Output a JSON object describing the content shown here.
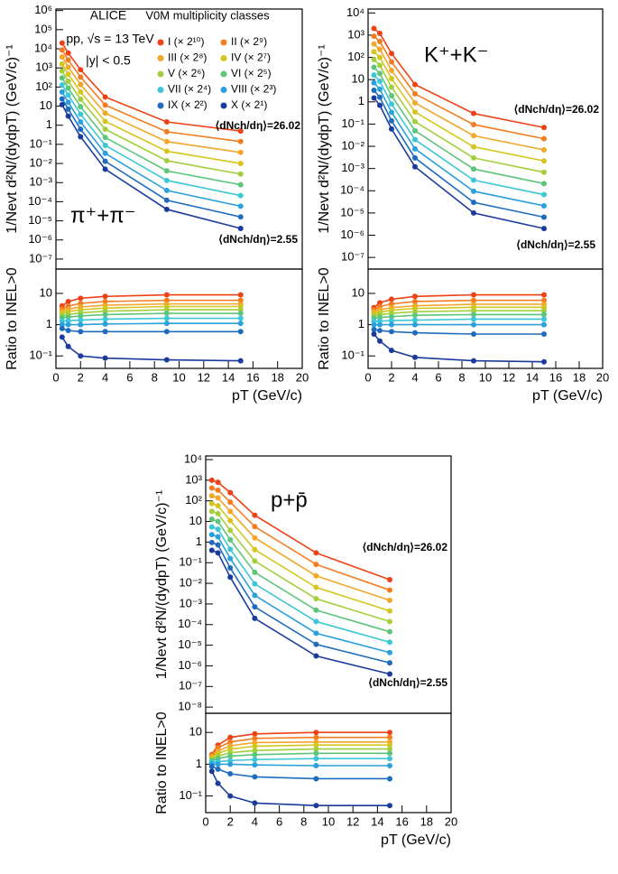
{
  "chart_data": [
    {
      "type": "line",
      "ylog": true,
      "x": [
        0.5,
        1,
        2,
        4,
        9,
        15
      ],
      "xlim": [
        0,
        20
      ],
      "ylim": [
        3e-08,
        1200000.0
      ],
      "yticks": [
        {
          "value": 1e-07,
          "label": "10⁻⁷"
        },
        {
          "value": 1e-06,
          "label": "10⁻⁶"
        },
        {
          "value": 1e-05,
          "label": "10⁻⁵"
        },
        {
          "value": 0.0001,
          "label": "10⁻⁴"
        },
        {
          "value": 0.001,
          "label": "10⁻³"
        },
        {
          "value": 0.01,
          "label": "10⁻²"
        },
        {
          "value": 0.1,
          "label": "10⁻¹"
        },
        1,
        10,
        {
          "value": 100,
          "label": "10²"
        },
        {
          "value": 1000,
          "label": "10³"
        },
        {
          "value": 10000,
          "label": "10⁴"
        },
        {
          "value": 100000,
          "label": "10⁵"
        },
        {
          "value": 1000000,
          "label": "10⁶"
        }
      ],
      "ylabel": "1/Nevt d²N/(dydpT) (GeV/c)⁻¹",
      "experiment": "ALICE",
      "system": "pp, √s = 13 TeV",
      "rapidity": "|y| < 0.5",
      "legend_title": "V0M multiplicity classes",
      "particle": "π⁺+π⁻",
      "label_high": "⟨dNch/dη⟩=26.02",
      "label_low": "⟨dNch/dη⟩=2.55",
      "series": [
        {
          "name": "I (× 2¹⁰)",
          "color": "#ee4216",
          "values": [
            20000,
            6000,
            800,
            30,
            1.5,
            0.5
          ]
        },
        {
          "name": "II (× 2⁹)",
          "color": "#f47c20",
          "values": [
            8600,
            2600,
            330,
            11.4,
            0.46,
            0.14
          ]
        },
        {
          "name": "III (× 2⁸)",
          "color": "#f2a62a",
          "values": [
            3700,
            1100,
            135,
            4.3,
            0.14,
            0.038
          ]
        },
        {
          "name": "IV (× 2⁷)",
          "color": "#d6c51f",
          "values": [
            1600,
            470,
            55,
            1.6,
            0.044,
            0.01
          ]
        },
        {
          "name": "V (× 2⁶)",
          "color": "#a3cf3c",
          "values": [
            690,
            200,
            23,
            0.62,
            0.014,
            0.0028
          ]
        },
        {
          "name": "VI (× 2⁵)",
          "color": "#5cc57a",
          "values": [
            300,
            88,
            9.3,
            0.23,
            0.0041,
            0.00077
          ]
        },
        {
          "name": "VII (× 2⁴)",
          "color": "#3cc6d6",
          "values": [
            130,
            38,
            3.8,
            0.089,
            0.0013,
            0.00021
          ]
        },
        {
          "name": "VIII (× 2³)",
          "color": "#2aa0dc",
          "values": [
            55,
            16,
            1.5,
            0.034,
            0.00039,
            5.8e-05
          ]
        },
        {
          "name": "IX (× 2²)",
          "color": "#1f6cbe",
          "values": [
            24,
            7,
            0.62,
            0.013,
            0.00012,
            1.6e-05
          ]
        },
        {
          "name": "X (× 2¹)",
          "color": "#1b3b9c",
          "values": [
            12,
            3,
            0.25,
            0.005,
            4e-05,
            4e-06
          ]
        }
      ]
    },
    {
      "type": "line",
      "ylog": true,
      "x": [
        0.5,
        1,
        2,
        4,
        9,
        15
      ],
      "xlim": [
        0,
        20
      ],
      "ylim": [
        0.04,
        60
      ],
      "xticks": [
        0,
        2,
        4,
        6,
        8,
        10,
        12,
        14,
        16,
        18,
        20
      ],
      "yticks": [
        {
          "value": 0.1,
          "label": "10⁻¹"
        },
        1,
        10
      ],
      "ylabel": "Ratio to INEL>0",
      "xlabel": "pT (GeV/c)",
      "series": [
        {
          "color": "#ee4216",
          "values": [
            4,
            5.5,
            7,
            8,
            9,
            9
          ]
        },
        {
          "color": "#f47c20",
          "values": [
            3.2,
            3.9,
            4.8,
            5.5,
            6,
            6
          ]
        },
        {
          "color": "#f2a62a",
          "values": [
            2.7,
            3.1,
            3.7,
            4.2,
            4.6,
            4.6
          ]
        },
        {
          "color": "#d6c51f",
          "values": [
            2.3,
            2.6,
            3,
            3.4,
            3.8,
            3.8
          ]
        },
        {
          "color": "#a3cf3c",
          "values": [
            2,
            2.1,
            2.4,
            2.7,
            3,
            3
          ]
        },
        {
          "color": "#5cc57a",
          "values": [
            1.7,
            1.75,
            1.9,
            2.1,
            2.3,
            2.3
          ]
        },
        {
          "color": "#3cc6d6",
          "values": [
            1.3,
            1.35,
            1.4,
            1.5,
            1.6,
            1.6
          ]
        },
        {
          "color": "#2aa0dc",
          "values": [
            1,
            1,
            1,
            1.05,
            1.1,
            1.1
          ]
        },
        {
          "color": "#1f6cbe",
          "values": [
            0.75,
            0.65,
            0.6,
            0.6,
            0.6,
            0.6
          ]
        },
        {
          "color": "#1b3b9c",
          "values": [
            0.4,
            0.2,
            0.1,
            0.085,
            0.075,
            0.07
          ]
        }
      ]
    },
    {
      "type": "line",
      "ylog": true,
      "x": [
        0.5,
        1,
        2,
        4,
        9,
        15
      ],
      "xlim": [
        0,
        20
      ],
      "ylim": [
        3e-08,
        15000.0
      ],
      "yticks": [
        {
          "value": 1e-07,
          "label": "10⁻⁷"
        },
        {
          "value": 1e-06,
          "label": "10⁻⁶"
        },
        {
          "value": 1e-05,
          "label": "10⁻⁵"
        },
        {
          "value": 0.0001,
          "label": "10⁻⁴"
        },
        {
          "value": 0.001,
          "label": "10⁻³"
        },
        {
          "value": 0.01,
          "label": "10⁻²"
        },
        {
          "value": 0.1,
          "label": "10⁻¹"
        },
        1,
        10,
        {
          "value": 100,
          "label": "10²"
        },
        {
          "value": 1000,
          "label": "10³"
        },
        {
          "value": 10000,
          "label": "10⁴"
        }
      ],
      "ylabel": "1/Nevt d²N/(dydpT) (GeV/c)⁻¹",
      "particle": "K⁺+K⁻",
      "label_high": "⟨dNch/dη⟩=26.02",
      "label_low": "⟨dNch/dη⟩=2.55",
      "series": [
        {
          "color": "#ee4216",
          "values": [
            2000,
            1200,
            150,
            6,
            0.3,
            0.07
          ]
        },
        {
          "color": "#f47c20",
          "values": [
            900,
            525,
            63,
            2.3,
            0.095,
            0.022
          ]
        },
        {
          "color": "#f2a62a",
          "values": [
            400,
            230,
            26,
            0.9,
            0.03,
            0.0069
          ]
        },
        {
          "color": "#d6c51f",
          "values": [
            180,
            100,
            11,
            0.35,
            0.0095,
            0.0022
          ]
        },
        {
          "color": "#a3cf3c",
          "values": [
            80,
            44,
            4.6,
            0.13,
            0.003,
            0.00068
          ]
        },
        {
          "color": "#5cc57a",
          "values": [
            36,
            19,
            1.9,
            0.05,
            0.00095,
            0.00021
          ]
        },
        {
          "color": "#3cc6d6",
          "values": [
            16,
            8.4,
            0.8,
            0.02,
            0.0003,
            6.7e-05
          ]
        },
        {
          "color": "#2aa0dc",
          "values": [
            7.2,
            3.7,
            0.34,
            0.0077,
            9.5e-05,
            2.1e-05
          ]
        },
        {
          "color": "#1f6cbe",
          "values": [
            3.3,
            1.6,
            0.14,
            0.003,
            3e-05,
            6.5e-06
          ]
        },
        {
          "color": "#1b3b9c",
          "values": [
            1.5,
            0.7,
            0.06,
            0.0012,
            1e-05,
            2e-06
          ]
        }
      ]
    },
    {
      "type": "line",
      "ylog": true,
      "x": [
        0.5,
        1,
        2,
        4,
        9,
        15
      ],
      "xlim": [
        0,
        20
      ],
      "ylim": [
        0.04,
        60
      ],
      "xticks": [
        0,
        2,
        4,
        6,
        8,
        10,
        12,
        14,
        16,
        18,
        20
      ],
      "yticks": [
        {
          "value": 0.1,
          "label": "10⁻¹"
        },
        1,
        10
      ],
      "ylabel": "Ratio to INEL>0",
      "xlabel": "pT (GeV/c)",
      "series": [
        {
          "color": "#ee4216",
          "values": [
            3.5,
            5,
            6.5,
            8,
            9,
            9
          ]
        },
        {
          "color": "#f47c20",
          "values": [
            3,
            3.8,
            4.6,
            5.5,
            6,
            6
          ]
        },
        {
          "color": "#f2a62a",
          "values": [
            2.5,
            3,
            3.5,
            4,
            4.5,
            4.5
          ]
        },
        {
          "color": "#d6c51f",
          "values": [
            2.2,
            2.5,
            2.9,
            3.3,
            3.6,
            3.6
          ]
        },
        {
          "color": "#a3cf3c",
          "values": [
            1.9,
            2.1,
            2.3,
            2.6,
            2.8,
            2.8
          ]
        },
        {
          "color": "#5cc57a",
          "values": [
            1.6,
            1.7,
            1.8,
            2,
            2.1,
            2.1
          ]
        },
        {
          "color": "#3cc6d6",
          "values": [
            1.3,
            1.3,
            1.35,
            1.4,
            1.5,
            1.5
          ]
        },
        {
          "color": "#2aa0dc",
          "values": [
            1,
            1,
            1,
            1,
            1,
            1
          ]
        },
        {
          "color": "#1f6cbe",
          "values": [
            0.7,
            0.65,
            0.6,
            0.55,
            0.5,
            0.5
          ]
        },
        {
          "color": "#1b3b9c",
          "values": [
            0.5,
            0.3,
            0.15,
            0.09,
            0.07,
            0.065
          ]
        }
      ]
    },
    {
      "type": "line",
      "ylog": true,
      "x": [
        0.5,
        1,
        2,
        4,
        9,
        15
      ],
      "xlim": [
        0,
        20
      ],
      "ylim": [
        5e-09,
        15000.0
      ],
      "yticks": [
        {
          "value": 1e-08,
          "label": "10⁻⁸"
        },
        {
          "value": 1e-07,
          "label": "10⁻⁷"
        },
        {
          "value": 1e-06,
          "label": "10⁻⁶"
        },
        {
          "value": 1e-05,
          "label": "10⁻⁵"
        },
        {
          "value": 0.0001,
          "label": "10⁻⁴"
        },
        {
          "value": 0.001,
          "label": "10⁻³"
        },
        {
          "value": 0.01,
          "label": "10⁻²"
        },
        {
          "value": 0.1,
          "label": "10⁻¹"
        },
        1,
        10,
        {
          "value": 100,
          "label": "10²"
        },
        {
          "value": 1000,
          "label": "10³"
        },
        {
          "value": 10000,
          "label": "10⁴"
        }
      ],
      "ylabel": "1/Nevt d²N/(dydpT) (GeV/c)⁻¹",
      "particle": "p+p̄",
      "label_high": "⟨dNch/dη⟩=26.02",
      "label_low": "⟨dNch/dη⟩=2.55",
      "series": [
        {
          "color": "#ee4216",
          "values": [
            1000,
            800,
            250,
            20,
            0.3,
            0.015
          ]
        },
        {
          "color": "#f47c20",
          "values": [
            420,
            330,
            87,
            5.6,
            0.083,
            0.0047
          ]
        },
        {
          "color": "#f2a62a",
          "values": [
            175,
            140,
            31,
            1.6,
            0.023,
            0.0015
          ]
        },
        {
          "color": "#d6c51f",
          "values": [
            74,
            58,
            11,
            0.43,
            0.0064,
            0.00046
          ]
        },
        {
          "color": "#a3cf3c",
          "values": [
            31,
            24,
            3.7,
            0.12,
            0.0018,
            0.00014
          ]
        },
        {
          "color": "#5cc57a",
          "values": [
            13,
            10,
            1.3,
            0.034,
            0.0005,
            4.5e-05
          ]
        },
        {
          "color": "#3cc6d6",
          "values": [
            5.4,
            4.2,
            0.45,
            0.0094,
            0.00014,
            1.4e-05
          ]
        },
        {
          "color": "#2aa0dc",
          "values": [
            2.3,
            1.8,
            0.16,
            0.0026,
            3.8e-05,
            4.4e-06
          ]
        },
        {
          "color": "#1f6cbe",
          "values": [
            0.95,
            0.73,
            0.056,
            0.00072,
            1.1e-05,
            1.4e-06
          ]
        },
        {
          "color": "#1b3b9c",
          "values": [
            0.4,
            0.3,
            0.02,
            0.0002,
            3e-06,
            4e-07
          ]
        }
      ]
    },
    {
      "type": "line",
      "ylog": true,
      "x": [
        0.5,
        1,
        2,
        4,
        9,
        15
      ],
      "xlim": [
        0,
        20
      ],
      "ylim": [
        0.03,
        40
      ],
      "xticks": [
        0,
        2,
        4,
        6,
        8,
        10,
        12,
        14,
        16,
        18,
        20
      ],
      "yticks": [
        {
          "value": 0.1,
          "label": "10⁻¹"
        },
        1,
        10
      ],
      "ylabel": "Ratio to INEL>0",
      "xlabel": "pT (GeV/c)",
      "series": [
        {
          "color": "#ee4216",
          "values": [
            2,
            4,
            7,
            9,
            10,
            10
          ]
        },
        {
          "color": "#f47c20",
          "values": [
            1.9,
            3.3,
            5,
            6.5,
            7,
            7
          ]
        },
        {
          "color": "#f2a62a",
          "values": [
            1.7,
            2.6,
            3.8,
            4.8,
            5,
            5
          ]
        },
        {
          "color": "#d6c51f",
          "values": [
            1.6,
            2.2,
            3,
            3.7,
            4,
            4
          ]
        },
        {
          "color": "#a3cf3c",
          "values": [
            1.4,
            1.8,
            2.3,
            2.7,
            3,
            3
          ]
        },
        {
          "color": "#5cc57a",
          "values": [
            1.3,
            1.5,
            1.8,
            2,
            2.2,
            2.2
          ]
        },
        {
          "color": "#3cc6d6",
          "values": [
            1.15,
            1.2,
            1.3,
            1.4,
            1.5,
            1.5
          ]
        },
        {
          "color": "#2aa0dc",
          "values": [
            1,
            1,
            1,
            0.95,
            0.9,
            0.9
          ]
        },
        {
          "color": "#1f6cbe",
          "values": [
            0.85,
            0.7,
            0.5,
            0.4,
            0.35,
            0.35
          ]
        },
        {
          "color": "#1b3b9c",
          "values": [
            0.6,
            0.25,
            0.1,
            0.06,
            0.05,
            0.05
          ]
        }
      ]
    }
  ]
}
